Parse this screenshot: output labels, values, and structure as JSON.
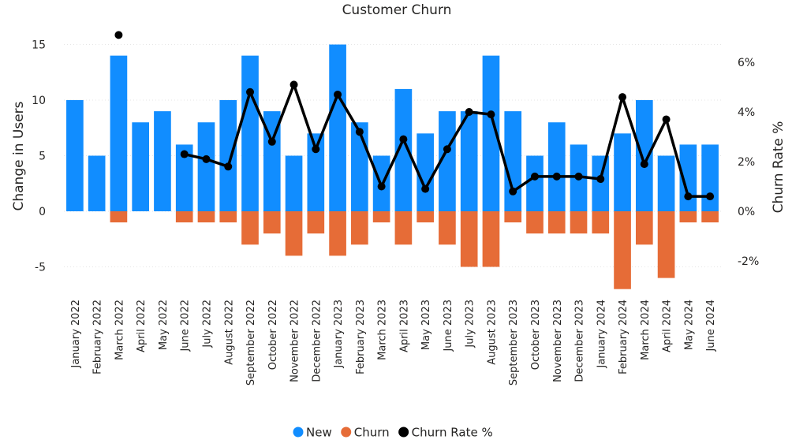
{
  "chart_data": {
    "type": "bar",
    "title": "Customer Churn",
    "xlabel": "",
    "ylabel": "Change in Users",
    "y2label": "Churn Rate %",
    "ylim": [
      -7.5,
      16
    ],
    "y_ticks": [
      15,
      10,
      5,
      0,
      -5
    ],
    "y2lim": [
      -3.5,
      7.5
    ],
    "y2_ticks": [
      "6%",
      "4%",
      "2%",
      "0%",
      "-2%"
    ],
    "y2_tick_values": [
      6,
      4,
      2,
      0,
      -2
    ],
    "grid": true,
    "legend_placement": "bottom-center",
    "categories": [
      "January 2022",
      "February 2022",
      "March 2022",
      "April 2022",
      "May 2022",
      "June 2022",
      "July 2022",
      "August 2022",
      "September 2022",
      "October 2022",
      "November 2022",
      "December 2022",
      "January 2023",
      "February 2023",
      "March 2023",
      "April 2023",
      "May 2023",
      "June 2023",
      "July 2023",
      "August 2023",
      "September 2023",
      "October 2023",
      "November 2023",
      "December 2023",
      "January 2024",
      "February 2024",
      "March 2024",
      "April 2024",
      "May 2024",
      "June 2024"
    ],
    "series": [
      {
        "name": "New",
        "type": "bar",
        "color": "#118DFF",
        "values": [
          10,
          5,
          14,
          8,
          9,
          6,
          8,
          10,
          14,
          9,
          5,
          7,
          15,
          8,
          5,
          11,
          7,
          9,
          9,
          14,
          9,
          5,
          8,
          6,
          5,
          7,
          10,
          5,
          6,
          6
        ]
      },
      {
        "name": "Churn",
        "type": "bar",
        "color": "#E66C37",
        "values": [
          0,
          0,
          -1,
          0,
          0,
          -1,
          -1,
          -1,
          -3,
          -2,
          -4,
          -2,
          -4,
          -3,
          -1,
          -3,
          -1,
          -3,
          -5,
          -5,
          -1,
          -2,
          -2,
          -2,
          -2,
          -7,
          -3,
          -6,
          -1,
          -1
        ]
      },
      {
        "name": "Churn Rate %",
        "type": "line",
        "axis": "secondary",
        "color": "#000000",
        "values": [
          null,
          null,
          7.1,
          null,
          null,
          2.3,
          2.1,
          1.8,
          4.8,
          2.8,
          5.1,
          2.5,
          4.7,
          3.2,
          1.0,
          2.9,
          0.9,
          2.5,
          4.0,
          3.9,
          0.8,
          1.4,
          1.4,
          1.4,
          1.3,
          4.6,
          1.9,
          3.7,
          0.6,
          0.6
        ]
      }
    ]
  }
}
